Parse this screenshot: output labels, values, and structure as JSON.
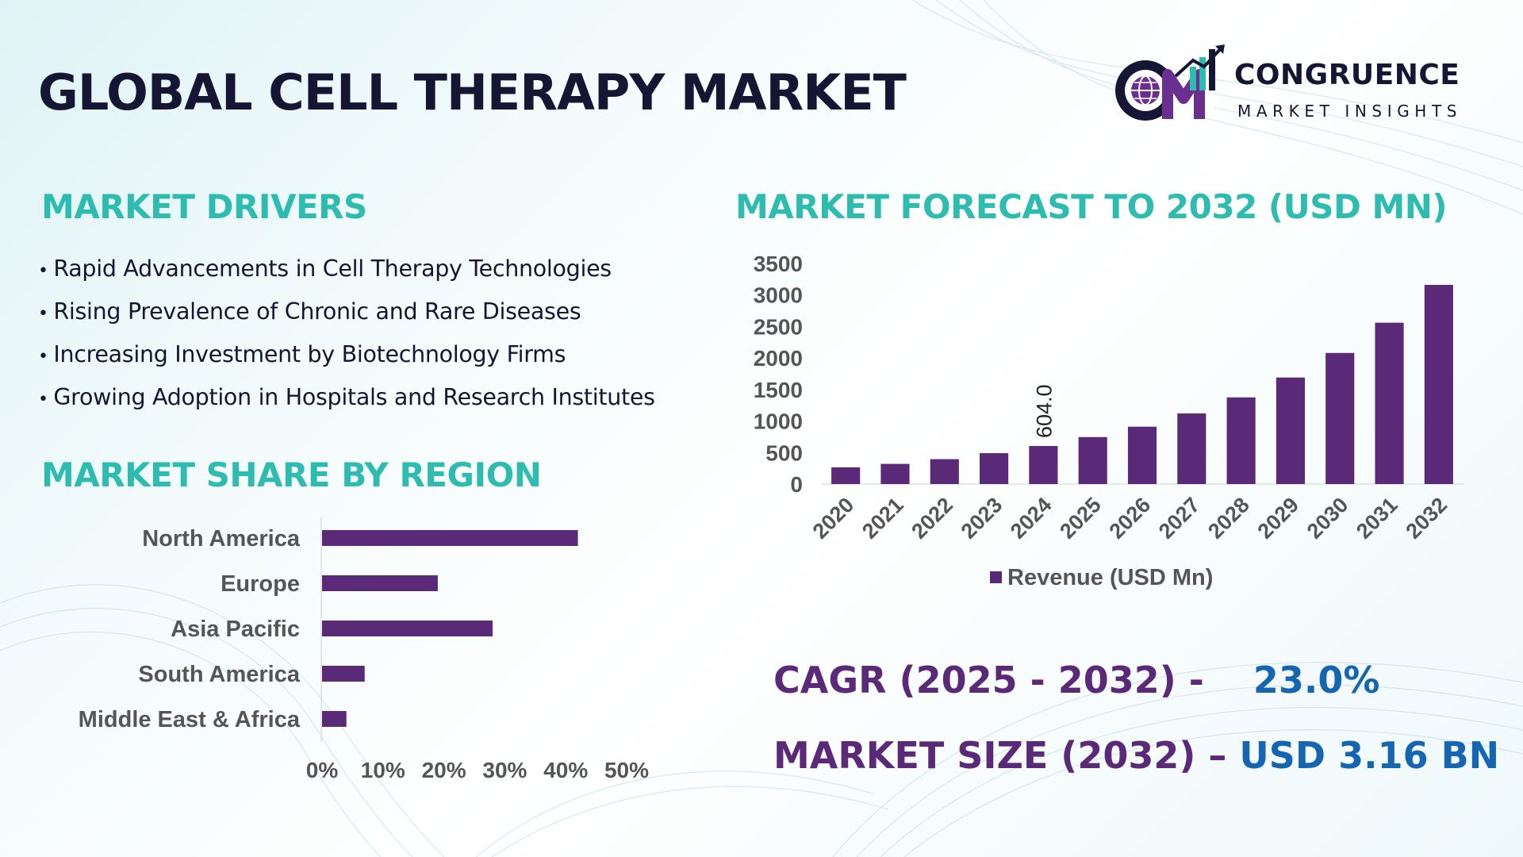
{
  "title": "GLOBAL CELL THERAPY MARKET",
  "logo": {
    "name": "CONGRUENCE",
    "sub": "MARKET INSIGHTS",
    "mark": "CM"
  },
  "drivers": {
    "heading": "MARKET DRIVERS",
    "items": [
      "Rapid Advancements in Cell Therapy Technologies",
      "Rising Prevalence of Chronic and Rare Diseases",
      "Increasing Investment by Biotechnology Firms",
      "Growing Adoption in Hospitals and Research Institutes"
    ]
  },
  "region": {
    "heading": "MARKET SHARE BY REGION"
  },
  "forecast": {
    "heading": "MARKET FORECAST TO 2032 (USD MN)"
  },
  "kpis": {
    "cagr_label": "CAGR (2025 - 2032) -",
    "cagr_value": "23.0%",
    "size_label": "MARKET SIZE (2032) –",
    "size_value": "USD 3.16 BN"
  },
  "colors": {
    "bar": "#5a2a79",
    "heading": "#2fbcb0",
    "title": "#141633",
    "kpi_value": "#1565b0",
    "axis_text": "#555555"
  },
  "chart_data": [
    {
      "type": "bar",
      "orientation": "horizontal",
      "categories": [
        "North America",
        "Europe",
        "Asia Pacific",
        "South America",
        "Middle East & Africa"
      ],
      "values": [
        42,
        19,
        28,
        7,
        4
      ],
      "xlim": [
        0,
        50
      ],
      "xticks": [
        "0%",
        "10%",
        "20%",
        "30%",
        "40%",
        "50%"
      ],
      "unit": "%",
      "grid": false,
      "legend": "none"
    },
    {
      "type": "bar",
      "categories": [
        "2020",
        "2021",
        "2022",
        "2023",
        "2024",
        "2025",
        "2026",
        "2027",
        "2028",
        "2029",
        "2030",
        "2031",
        "2032"
      ],
      "series": [
        {
          "name": "Revenue (USD Mn)",
          "values": [
            265,
            320,
            395,
            490,
            604.0,
            745,
            910,
            1120,
            1375,
            1690,
            2080,
            2560,
            3160
          ]
        }
      ],
      "data_labels": [
        {
          "category": "2024",
          "text": "604.0"
        }
      ],
      "yticks": [
        0,
        500,
        1000,
        1500,
        2000,
        2500,
        3000,
        3500
      ],
      "ylim": [
        0,
        3500
      ],
      "grid": false,
      "legend": "bottom"
    }
  ]
}
